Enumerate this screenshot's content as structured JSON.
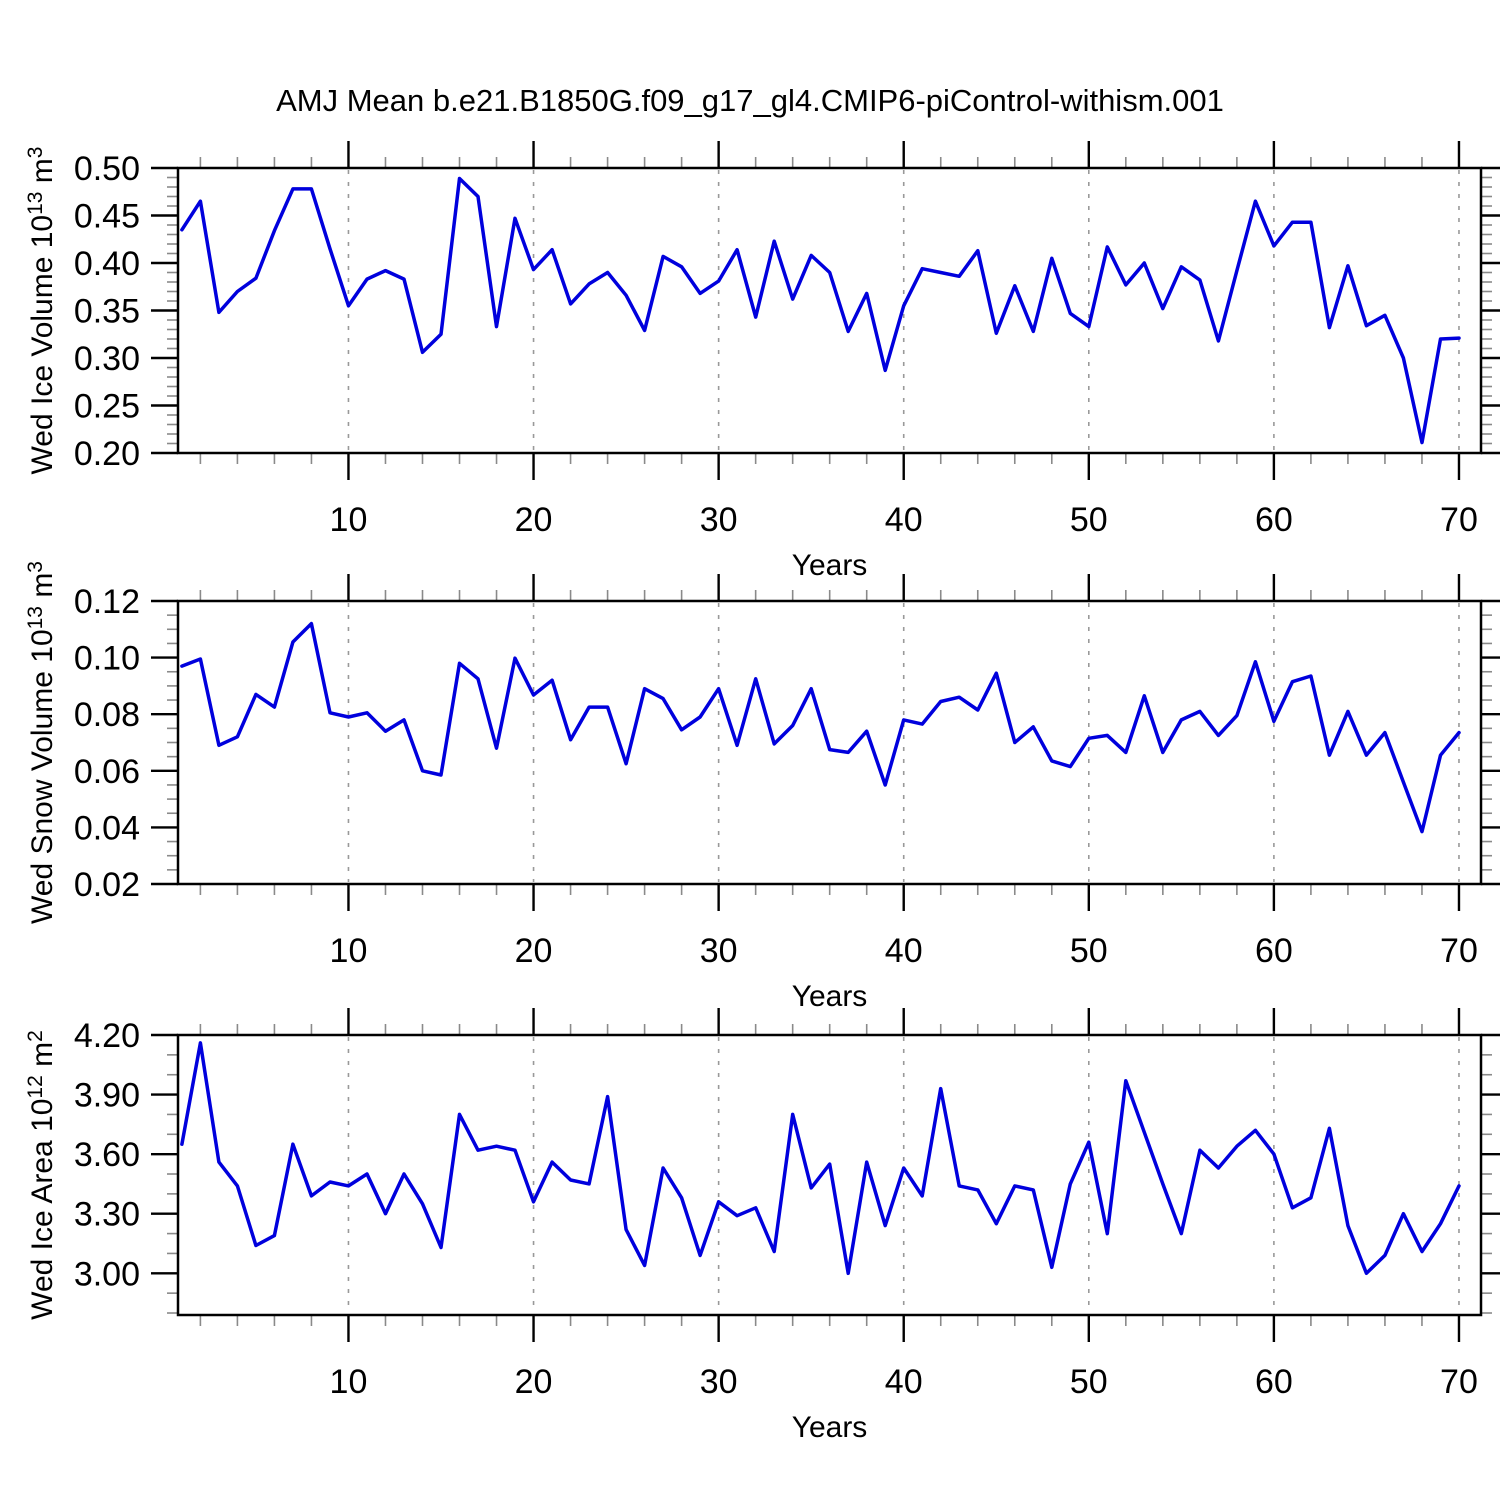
{
  "title": "AMJ Mean b.e21.B1850G.f09_g17_gl4.CMIP6-piControl-withism.001",
  "style": {
    "line_color": "#0000dd",
    "frame_color": "#000000",
    "major_tick_color": "#000000",
    "minor_tick_color": "#8a8a8a",
    "gridline_color": "#999999"
  },
  "x_axis": {
    "label": "Years",
    "range": [
      0.79,
      71.19
    ],
    "major_ticks": [
      10,
      20,
      30,
      40,
      50,
      60,
      70
    ],
    "major_tick_labels": [
      "10",
      "20",
      "30",
      "40",
      "50",
      "60",
      "70"
    ],
    "minor_step": 2
  },
  "chart_data": [
    {
      "type": "line",
      "id": "ice-volume",
      "ylabel_plain": "Wed Ice Volume 10^13 m^3",
      "ylabel_parts": [
        {
          "t": "Wed Ice Volume 10"
        },
        {
          "t": "13",
          "sup": true
        },
        {
          "t": " m"
        },
        {
          "t": "3",
          "sup": true
        }
      ],
      "xlabel": "Years",
      "ylim": [
        0.2,
        0.5
      ],
      "ytick_values": [
        0.2,
        0.25,
        0.3,
        0.35,
        0.4,
        0.45,
        0.5
      ],
      "ytick_labels": [
        "0.20",
        "0.25",
        "0.30",
        "0.35",
        "0.40",
        "0.45",
        "0.50"
      ],
      "y_minor_step": 0.01,
      "x_start_year": 1,
      "values": [
        0.435,
        0.465,
        0.348,
        0.37,
        0.384,
        0.434,
        0.478,
        0.478,
        0.415,
        0.355,
        0.383,
        0.392,
        0.383,
        0.306,
        0.325,
        0.489,
        0.47,
        0.333,
        0.447,
        0.393,
        0.414,
        0.357,
        0.378,
        0.39,
        0.366,
        0.329,
        0.407,
        0.396,
        0.368,
        0.381,
        0.414,
        0.343,
        0.423,
        0.362,
        0.408,
        0.39,
        0.328,
        0.368,
        0.287,
        0.355,
        0.394,
        0.39,
        0.386,
        0.413,
        0.326,
        0.376,
        0.328,
        0.405,
        0.347,
        0.333,
        0.417,
        0.377,
        0.4,
        0.352,
        0.396,
        0.382,
        0.318,
        0.392,
        0.465,
        0.418,
        0.443,
        0.443,
        0.332,
        0.397,
        0.334,
        0.345,
        0.3,
        0.211,
        0.32,
        0.321
      ]
    },
    {
      "type": "line",
      "id": "snow-volume",
      "ylabel_plain": "Wed Snow Volume 10^13 m^3",
      "ylabel_parts": [
        {
          "t": "Wed Snow Volume 10"
        },
        {
          "t": "13",
          "sup": true
        },
        {
          "t": " m"
        },
        {
          "t": "3",
          "sup": true
        }
      ],
      "xlabel": "Years",
      "ylim": [
        0.02,
        0.12
      ],
      "ytick_values": [
        0.02,
        0.04,
        0.06,
        0.08,
        0.1,
        0.12
      ],
      "ytick_labels": [
        "0.02",
        "0.04",
        "0.06",
        "0.08",
        "0.10",
        "0.12"
      ],
      "y_minor_step": 0.005,
      "x_start_year": 1,
      "values": [
        0.097,
        0.0995,
        0.069,
        0.072,
        0.087,
        0.0825,
        0.1055,
        0.112,
        0.0805,
        0.079,
        0.0805,
        0.074,
        0.078,
        0.06,
        0.0585,
        0.098,
        0.0925,
        0.068,
        0.0998,
        0.0868,
        0.092,
        0.071,
        0.0825,
        0.0825,
        0.0625,
        0.089,
        0.0855,
        0.0745,
        0.079,
        0.089,
        0.069,
        0.0925,
        0.0695,
        0.076,
        0.089,
        0.0675,
        0.0665,
        0.074,
        0.055,
        0.078,
        0.0765,
        0.0845,
        0.086,
        0.0815,
        0.0945,
        0.07,
        0.0755,
        0.0635,
        0.0615,
        0.0715,
        0.0725,
        0.0665,
        0.0865,
        0.0665,
        0.078,
        0.081,
        0.0725,
        0.0795,
        0.0985,
        0.0775,
        0.0915,
        0.0935,
        0.0655,
        0.081,
        0.0655,
        0.0735,
        0.056,
        0.0385,
        0.0655,
        0.0735
      ]
    },
    {
      "type": "line",
      "id": "ice-area",
      "ylabel_plain": "Wed Ice Area 10^12 m^2",
      "ylabel_parts": [
        {
          "t": "Wed Ice Area 10"
        },
        {
          "t": "12",
          "sup": true
        },
        {
          "t": " m"
        },
        {
          "t": "2",
          "sup": true
        }
      ],
      "xlabel": "Years",
      "ylim": [
        2.79,
        4.2
      ],
      "ytick_values": [
        3.0,
        3.3,
        3.6,
        3.9,
        4.2
      ],
      "ytick_labels": [
        "3.00",
        "3.30",
        "3.60",
        "3.90",
        "4.20"
      ],
      "y_minor_step": 0.1,
      "x_start_year": 1,
      "values": [
        3.65,
        4.16,
        3.56,
        3.44,
        3.14,
        3.19,
        3.65,
        3.39,
        3.46,
        3.44,
        3.5,
        3.3,
        3.5,
        3.35,
        3.13,
        3.8,
        3.62,
        3.64,
        3.62,
        3.36,
        3.56,
        3.47,
        3.45,
        3.89,
        3.22,
        3.04,
        3.53,
        3.38,
        3.09,
        3.36,
        3.29,
        3.33,
        3.11,
        3.8,
        3.43,
        3.55,
        3.0,
        3.56,
        3.24,
        3.53,
        3.39,
        3.93,
        3.44,
        3.42,
        3.25,
        3.44,
        3.42,
        3.03,
        3.45,
        3.66,
        3.2,
        3.97,
        3.71,
        3.45,
        3.2,
        3.62,
        3.53,
        3.64,
        3.72,
        3.6,
        3.33,
        3.38,
        3.73,
        3.24,
        3.0,
        3.09,
        3.3,
        3.11,
        3.25,
        3.44
      ]
    }
  ]
}
